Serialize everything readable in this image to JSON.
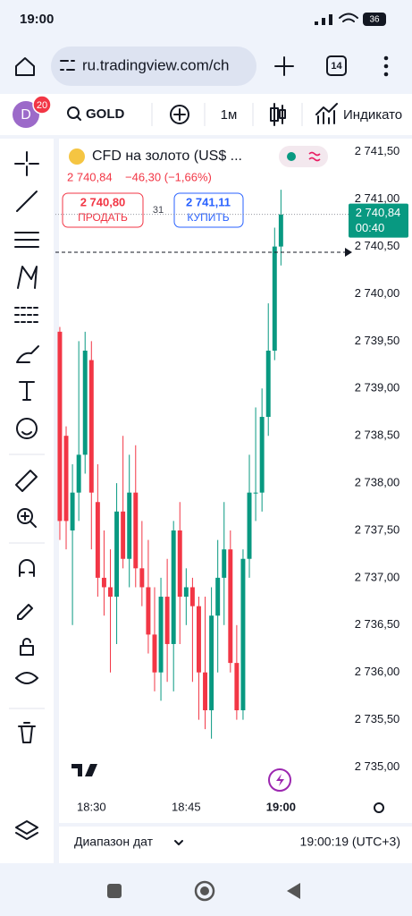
{
  "status_bar": {
    "time": "19:00",
    "battery": "36"
  },
  "browser": {
    "url": "ru.tradingview.com/ch",
    "tabs": "14"
  },
  "toolbar": {
    "avatar": "D",
    "badge": "20",
    "symbol": "GOLD",
    "interval": "1м",
    "indicators": "Индикато"
  },
  "legend": {
    "title": "CFD на золото (US$ ...",
    "price": "2 740,84",
    "change": "−46,30 (−1,66%)",
    "sell_price": "2 740,80",
    "sell": "ПРОДАТЬ",
    "spread": "31",
    "buy_price": "2 741,11",
    "buy": "КУПИТЬ"
  },
  "chart_data": {
    "type": "candlestick",
    "open": [
      2739.6,
      2738.5,
      2737.5,
      2737.9,
      2738.3,
      2739.3,
      2737.8,
      2737.0,
      2736.9,
      2736.8,
      2737.7,
      2737.2,
      2737.9,
      2737.1,
      2736.9,
      2736.4,
      2736.0,
      2736.8,
      2736.3,
      2737.5,
      2736.8,
      2736.9,
      2736.7,
      2736.0,
      2735.6,
      2736.6,
      2737.0,
      2737.3,
      2736.1,
      2735.6,
      2737.2,
      2737.9,
      2737.9,
      2738.7,
      2739.4,
      2740.5
    ],
    "high": [
      2739.65,
      2738.6,
      2738.2,
      2739.5,
      2739.6,
      2739.5,
      2738.2,
      2737.5,
      2737.3,
      2738.0,
      2738.5,
      2738.3,
      2738.4,
      2737.6,
      2737.4,
      2736.9,
      2737.0,
      2737.2,
      2737.6,
      2737.8,
      2737.1,
      2737.0,
      2736.8,
      2736.8,
      2736.9,
      2737.4,
      2737.8,
      2737.5,
      2736.5,
      2737.3,
      2738.3,
      2738.8,
      2739.0,
      2739.9,
      2740.7,
      2741.1
    ],
    "low": [
      2737.4,
      2737.3,
      2736.5,
      2737.6,
      2738.1,
      2737.3,
      2736.8,
      2736.6,
      2736.0,
      2736.3,
      2737.1,
      2736.9,
      2736.9,
      2736.7,
      2736.2,
      2735.8,
      2735.7,
      2735.9,
      2735.8,
      2736.3,
      2736.5,
      2735.9,
      2735.5,
      2735.4,
      2735.3,
      2736.0,
      2736.5,
      2736.0,
      2735.5,
      2735.5,
      2737.0,
      2737.6,
      2737.7,
      2738.5,
      2739.3,
      2740.3
    ],
    "close": [
      2737.6,
      2737.6,
      2737.9,
      2738.3,
      2739.4,
      2737.9,
      2737.0,
      2736.9,
      2736.8,
      2737.7,
      2737.2,
      2737.9,
      2737.1,
      2736.9,
      2736.4,
      2736.0,
      2736.8,
      2736.3,
      2737.5,
      2736.8,
      2736.9,
      2736.7,
      2736.0,
      2735.6,
      2736.6,
      2737.0,
      2737.3,
      2736.1,
      2735.6,
      2737.2,
      2737.9,
      2737.9,
      2738.7,
      2739.4,
      2740.5,
      2740.84
    ],
    "up_color": "#089981",
    "down_color": "#f23645",
    "xlim": [
      -0.7,
      45.7
    ],
    "xticks": [
      {
        "value": 5,
        "label": "18:30"
      },
      {
        "value": 20,
        "label": "18:45"
      },
      {
        "value": 35,
        "label": "19:00"
      }
    ],
    "ylim": [
      2734.74,
      2741.64
    ],
    "yticks": [
      {
        "value": 2741.5,
        "label": "2 741,50"
      },
      {
        "value": 2741.0,
        "label": "2 741,00"
      },
      {
        "value": 2740.5,
        "label": "2 740,50"
      },
      {
        "value": 2740.0,
        "label": "2 740,00"
      },
      {
        "value": 2739.5,
        "label": "2 739,50"
      },
      {
        "value": 2739.0,
        "label": "2 739,00"
      },
      {
        "value": 2738.5,
        "label": "2 738,50"
      },
      {
        "value": 2738.0,
        "label": "2 738,00"
      },
      {
        "value": 2737.5,
        "label": "2 737,50"
      },
      {
        "value": 2737.0,
        "label": "2 737,00"
      },
      {
        "value": 2736.5,
        "label": "2 736,50"
      },
      {
        "value": 2736.0,
        "label": "2 736,00"
      },
      {
        "value": 2735.5,
        "label": "2 735,50"
      },
      {
        "value": 2735.0,
        "label": "2 735,00"
      }
    ],
    "last_price": {
      "value": 2740.84,
      "label": "2 740,84"
    },
    "countdown": "00:40",
    "dashed_line": 2740.44
  },
  "footer": {
    "range": "Диапазон дат",
    "time": "19:00:19 (UTC+3)"
  }
}
